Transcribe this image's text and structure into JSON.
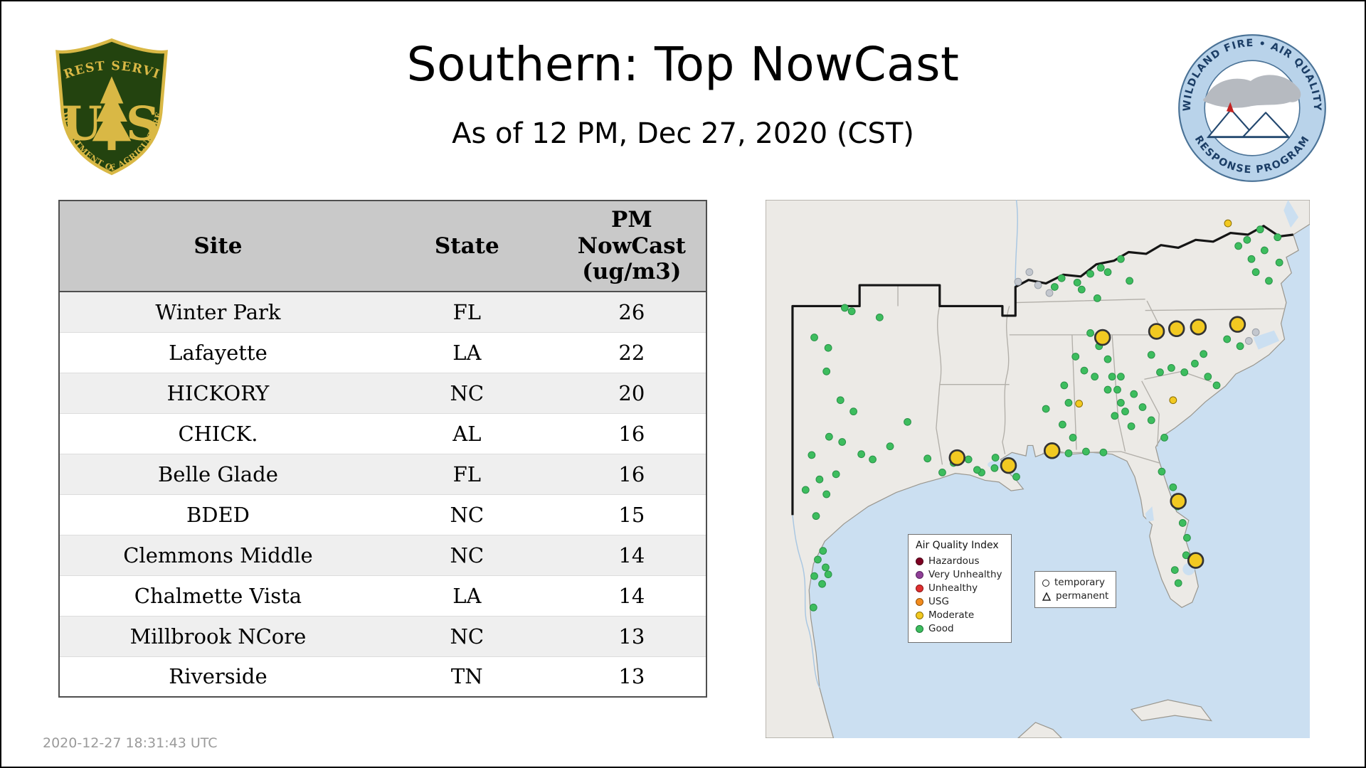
{
  "header": {
    "title": "Southern: Top NowCast",
    "subtitle": "As of 12 PM, Dec 27, 2020 (CST)"
  },
  "logos": {
    "forest_service": {
      "top_text": "FOREST SERVICE",
      "bottom_text": "DEPARTMENT OF AGRICULTURE",
      "letter_left": "U",
      "letter_right": "S",
      "shield_green": "#23430f",
      "gold": "#d9b845"
    },
    "wfaqrp": {
      "top_text": "WILDLAND FIRE • AIR QUALITY",
      "bottom_text": "RESPONSE PROGRAM",
      "ring_color": "#b9d3ea",
      "text_color": "#1c3e66"
    }
  },
  "table": {
    "columns": [
      "Site",
      "State",
      "PM\nNowCast\n(ug/m3)"
    ],
    "rows": [
      {
        "site": "Winter Park",
        "state": "FL",
        "value": "26"
      },
      {
        "site": "Lafayette",
        "state": "LA",
        "value": "22"
      },
      {
        "site": "HICKORY",
        "state": "NC",
        "value": "20"
      },
      {
        "site": "CHICK.",
        "state": "AL",
        "value": "16"
      },
      {
        "site": "Belle Glade",
        "state": "FL",
        "value": "16"
      },
      {
        "site": "BDED",
        "state": "NC",
        "value": "15"
      },
      {
        "site": "Clemmons Middle",
        "state": "NC",
        "value": "14"
      },
      {
        "site": "Chalmette Vista",
        "state": "LA",
        "value": "14"
      },
      {
        "site": "Millbrook NCore",
        "state": "NC",
        "value": "13"
      },
      {
        "site": "Riverside",
        "state": "TN",
        "value": "13"
      }
    ]
  },
  "map": {
    "legend": {
      "title": "Air Quality Index",
      "items": [
        {
          "label": "Hazardous",
          "color": "#7e0023",
          "ring": "#4a0015"
        },
        {
          "label": "Very Unhealthy",
          "color": "#8f3f97",
          "ring": "#5a2561"
        },
        {
          "label": "Unhealthy",
          "color": "#e03030",
          "ring": "#8a1212"
        },
        {
          "label": "USG",
          "color": "#f28b1d",
          "ring": "#965206"
        },
        {
          "label": "Moderate",
          "color": "#f2c921",
          "ring": "#8a6d00"
        },
        {
          "label": "Good",
          "color": "#3dbd5e",
          "ring": "#1f7a3a"
        }
      ]
    },
    "type_legend": {
      "temporary": "temporary",
      "permanent": "permanent"
    },
    "colors": {
      "good": "#3dbd5e",
      "moderate": "#f2c921",
      "inactive": "#c3c7ce",
      "water": "#cbdff1",
      "land": "#eceae6"
    },
    "points": {
      "good": [
        [
          91,
          124
        ],
        [
          99,
          128
        ],
        [
          131,
          135
        ],
        [
          56,
          158
        ],
        [
          72,
          170
        ],
        [
          70,
          197
        ],
        [
          86,
          230
        ],
        [
          101,
          243
        ],
        [
          143,
          283
        ],
        [
          163,
          255
        ],
        [
          186,
          297
        ],
        [
          203,
          313
        ],
        [
          123,
          298
        ],
        [
          110,
          292
        ],
        [
          88,
          278
        ],
        [
          73,
          272
        ],
        [
          53,
          293
        ],
        [
          62,
          321
        ],
        [
          81,
          315
        ],
        [
          46,
          333
        ],
        [
          70,
          338
        ],
        [
          58,
          363
        ],
        [
          66,
          403
        ],
        [
          60,
          413
        ],
        [
          69,
          422
        ],
        [
          56,
          432
        ],
        [
          65,
          441
        ],
        [
          72,
          430
        ],
        [
          55,
          468
        ],
        [
          233,
          298
        ],
        [
          248,
          313
        ],
        [
          263,
          308
        ],
        [
          288,
          318
        ],
        [
          243,
          310
        ],
        [
          264,
          296
        ],
        [
          216,
          302
        ],
        [
          343,
          213
        ],
        [
          348,
          233
        ],
        [
          341,
          258
        ],
        [
          353,
          273
        ],
        [
          322,
          240
        ],
        [
          373,
          153
        ],
        [
          383,
          168
        ],
        [
          393,
          183
        ],
        [
          398,
          203
        ],
        [
          404,
          218
        ],
        [
          408,
          233
        ],
        [
          356,
          180
        ],
        [
          366,
          196
        ],
        [
          358,
          95
        ],
        [
          373,
          85
        ],
        [
          385,
          78
        ],
        [
          393,
          83
        ],
        [
          408,
          68
        ],
        [
          418,
          93
        ],
        [
          363,
          103
        ],
        [
          381,
          113
        ],
        [
          340,
          90
        ],
        [
          332,
          100
        ],
        [
          378,
          203
        ],
        [
          393,
          218
        ],
        [
          408,
          203
        ],
        [
          423,
          223
        ],
        [
          433,
          238
        ],
        [
          413,
          243
        ],
        [
          443,
          253
        ],
        [
          458,
          273
        ],
        [
          401,
          248
        ],
        [
          420,
          260
        ],
        [
          466,
          193
        ],
        [
          481,
          198
        ],
        [
          493,
          188
        ],
        [
          508,
          203
        ],
        [
          518,
          213
        ],
        [
          443,
          178
        ],
        [
          453,
          198
        ],
        [
          530,
          160
        ],
        [
          545,
          168
        ],
        [
          503,
          177
        ],
        [
          543,
          53
        ],
        [
          558,
          68
        ],
        [
          573,
          58
        ],
        [
          563,
          83
        ],
        [
          578,
          93
        ],
        [
          553,
          46
        ],
        [
          588,
          43
        ],
        [
          568,
          34
        ],
        [
          590,
          72
        ],
        [
          468,
          330
        ],
        [
          473,
          352
        ],
        [
          479,
          371
        ],
        [
          484,
          388
        ],
        [
          483,
          408
        ],
        [
          470,
          425
        ],
        [
          474,
          440
        ],
        [
          455,
          312
        ],
        [
          348,
          291
        ],
        [
          368,
          289
        ],
        [
          388,
          290
        ]
      ],
      "moderate_small": [
        [
          531,
          27
        ],
        [
          360,
          234
        ],
        [
          468,
          230
        ]
      ],
      "moderate_large": [
        [
          220,
          296
        ],
        [
          279,
          305
        ],
        [
          329,
          288
        ],
        [
          387,
          158
        ],
        [
          449,
          151
        ],
        [
          472,
          148
        ],
        [
          497,
          146
        ],
        [
          542,
          143
        ],
        [
          474,
          346
        ],
        [
          494,
          414
        ]
      ],
      "inactive": [
        [
          303,
          83
        ],
        [
          313,
          98
        ],
        [
          290,
          94
        ],
        [
          326,
          107
        ],
        [
          555,
          162
        ],
        [
          563,
          152
        ]
      ]
    }
  },
  "footer": {
    "timestamp": "2020-12-27 18:31:43 UTC"
  }
}
